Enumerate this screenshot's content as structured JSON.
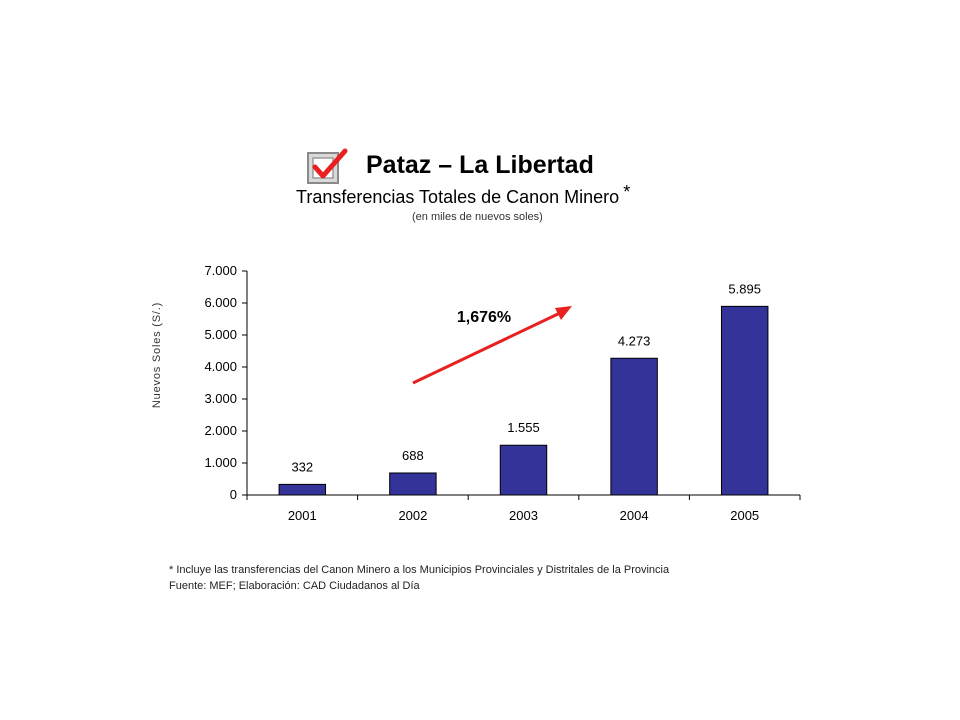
{
  "header": {
    "title": "Pataz – La Libertad",
    "subtitle": "Transferencias Totales de Canon Minero",
    "subtitle_mark": "*",
    "units": "(en miles de nuevos soles)"
  },
  "annotation": {
    "text": "1,676%",
    "color": "#e82020"
  },
  "footer": {
    "note": "* Incluye las transferencias del Canon Minero a los Municipios Provinciales y Distritales de la Provincia",
    "source": "Fuente: MEF; Elaboración: CAD Ciudadanos al Día"
  },
  "icons": {
    "logo": "checkbox-check-icon"
  },
  "colors": {
    "bar": "#333399",
    "accent": "#e82020"
  },
  "chart_data": {
    "type": "bar",
    "title": "Transferencias Totales de Canon Minero",
    "xlabel": "",
    "ylabel": "Nuevos Soles (S/.)",
    "categories": [
      "2001",
      "2002",
      "2003",
      "2004",
      "2005"
    ],
    "values": [
      332,
      688,
      1555,
      4273,
      5895
    ],
    "value_labels": [
      "332",
      "688",
      "1.555",
      "4.273",
      "5.895"
    ],
    "ylim": [
      0,
      7000
    ],
    "yticks": [
      0,
      1000,
      2000,
      3000,
      4000,
      5000,
      6000,
      7000
    ],
    "ytick_labels": [
      "0",
      "1.000",
      "2.000",
      "3.000",
      "4.000",
      "5.000",
      "6.000",
      "7.000"
    ],
    "grid": false,
    "legend": "none"
  }
}
